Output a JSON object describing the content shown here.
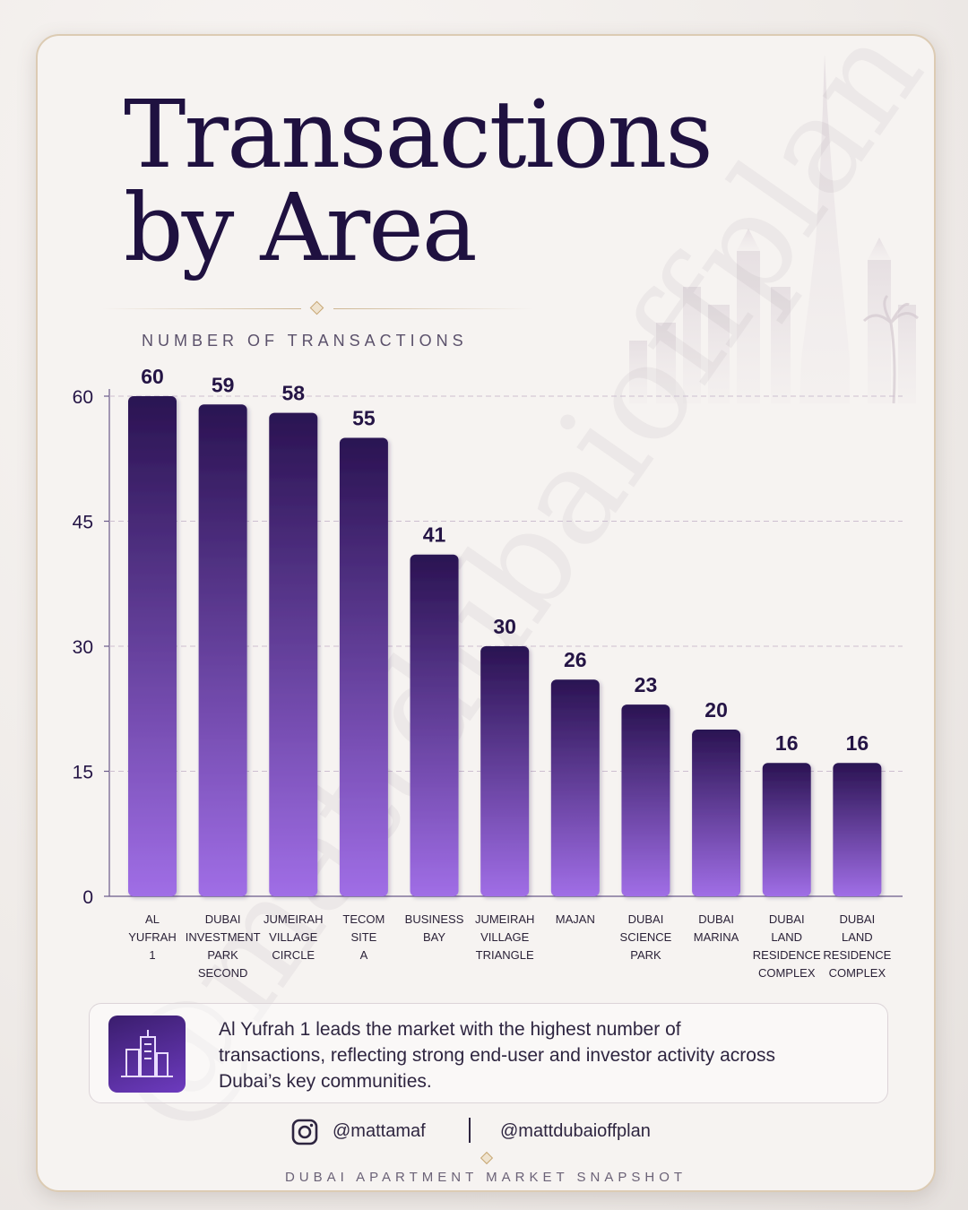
{
  "header": {
    "title_line1": "Transactions",
    "title_line2": "by Area",
    "subtitle": "NUMBER OF TRANSACTIONS"
  },
  "watermark": "@mattdubaioffplan",
  "chart_data": {
    "type": "bar",
    "title": "Transactions by Area",
    "ylabel": "NUMBER OF TRANSACTIONS",
    "xlabel": "",
    "ylim": [
      0,
      60
    ],
    "yticks": [
      0,
      15,
      30,
      45,
      60
    ],
    "grid": true,
    "categories": [
      [
        "AL",
        "YUFRAH",
        "1"
      ],
      [
        "DUBAI",
        "INVESTMENT",
        "PARK",
        "SECOND"
      ],
      [
        "JUMEIRAH",
        "VILLAGE",
        "CIRCLE"
      ],
      [
        "TECOM",
        "SITE",
        "A"
      ],
      [
        "BUSINESS",
        "BAY"
      ],
      [
        "JUMEIRAH",
        "VILLAGE",
        "TRIANGLE"
      ],
      [
        "MAJAN"
      ],
      [
        "DUBAI",
        "SCIENCE",
        "PARK"
      ],
      [
        "DUBAI",
        "MARINA"
      ],
      [
        "DUBAI",
        "LAND",
        "RESIDENCE",
        "COMPLEX"
      ],
      [
        "DUBAI",
        "LAND",
        "RESIDENCE",
        "COMPLEX"
      ]
    ],
    "values": [
      60,
      59,
      58,
      55,
      41,
      30,
      26,
      23,
      20,
      16,
      16
    ],
    "colors": {
      "bar_top": "#2a1352",
      "bar_bottom": "#a06ee6",
      "label": "#241445",
      "axis": "#6a5a8a",
      "grid": "#cdbfd0"
    }
  },
  "insight": {
    "icon": "buildings-icon",
    "text": "Al Yufrah 1 leads the market with the highest number of transactions, reflecting strong end-user and investor activity across Dubai’s key communities."
  },
  "social": {
    "icon": "instagram-icon",
    "handle1": "@mattamaf",
    "handle2": "@mattdubaioffplan"
  },
  "footer": "DUBAI APARTMENT MARKET SNAPSHOT"
}
